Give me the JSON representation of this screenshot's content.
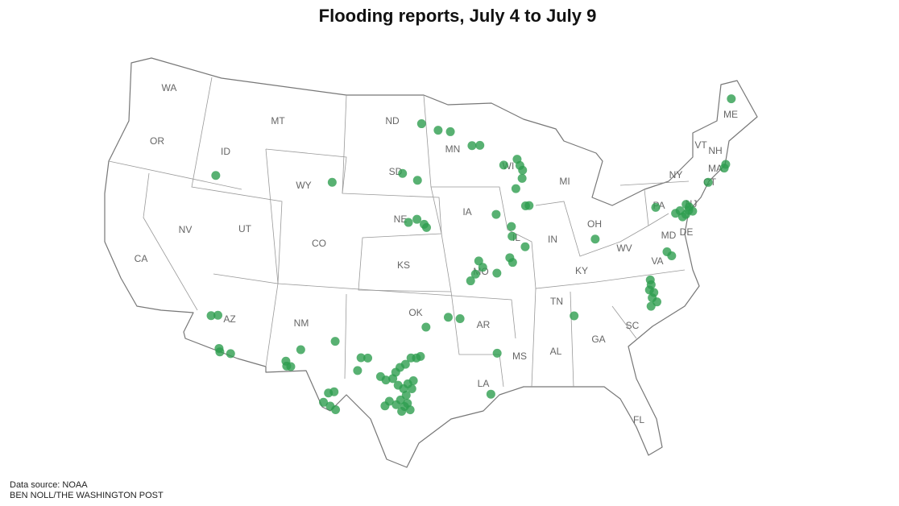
{
  "chart_data": {
    "type": "map",
    "title": "Flooding reports, July 4 to July 9",
    "source": "Data source: NOAA",
    "credit": "BEN NOLL/THE WASHINGTON POST",
    "color": "#2e9e4f",
    "states": [
      "WA",
      "OR",
      "CA",
      "ID",
      "NV",
      "MT",
      "WY",
      "UT",
      "AZ",
      "CO",
      "NM",
      "ND",
      "SD",
      "NE",
      "KS",
      "OK",
      "MN",
      "IA",
      "MO",
      "AR",
      "LA",
      "WI",
      "IL",
      "MI",
      "IN",
      "KY",
      "TN",
      "MS",
      "AL",
      "OH",
      "GA",
      "FL",
      "SC",
      "VA",
      "WV",
      "PA",
      "NY",
      "VT",
      "NH",
      "ME",
      "MA",
      "CT",
      "NJ",
      "MD",
      "DE"
    ],
    "points": {
      "lon": [
        -69.0,
        -97.0,
        -95.5,
        -94.4,
        -92.5,
        -91.8,
        -89.8,
        -88.6,
        -88.4,
        -88.2,
        -88.3,
        -88.9,
        -98.6,
        -97.3,
        -104.6,
        -114.5,
        -98.0,
        -97.3,
        -96.7,
        -96.5,
        -90.7,
        -88.2,
        -87.9,
        -89.5,
        -89.5,
        -88.5,
        -89.8,
        -89.6,
        -92.3,
        -92.0,
        -92.6,
        -93.0,
        -90.9,
        -82.8,
        -77.5,
        -75.0,
        -74.8,
        -74.9,
        -75.2,
        -75.5,
        -74.6,
        -75.6,
        -76.0,
        -72.8,
        -71.2,
        -71.0,
        -77.3,
        -77.0,
        -79.0,
        -79.0,
        -79.2,
        -78.9,
        -79.1,
        -78.8,
        -79.3,
        -85.2,
        -94.8,
        -93.9,
        -96.5,
        -91.2,
        -91.8,
        -112.8,
        -112.3,
        -111.8,
        -111.7,
        -110.9,
        -106.8,
        -106.7,
        -106.4,
        -105.8,
        -103.3,
        -103.5,
        -103.1,
        -103.8,
        -103.3,
        -102.9,
        -101.3,
        -100.8,
        -101.5,
        -99.8,
        -99.4,
        -98.9,
        -98.7,
        -98.4,
        -98.0,
        -97.6,
        -97.2,
        -96.9,
        -98.5,
        -98.1,
        -97.8,
        -97.4,
        -97.9,
        -98.3,
        -98.6,
        -98.0,
        -97.8,
        -99.1,
        -99.4,
        -97.5,
        -98.2,
        -97.6
      ],
      "lat": [
        46.2,
        47.3,
        46.9,
        46.8,
        45.9,
        45.9,
        44.6,
        44.9,
        44.5,
        44.2,
        43.7,
        43.1,
        44.2,
        43.8,
        43.4,
        42.8,
        41.2,
        41.4,
        41.1,
        40.9,
        41.6,
        42.0,
        42.0,
        40.8,
        40.2,
        39.5,
        38.9,
        38.6,
        38.8,
        38.4,
        38.0,
        37.6,
        38.0,
        39.5,
        40.8,
        40.6,
        40.4,
        40.2,
        40.0,
        39.9,
        40.1,
        40.3,
        40.2,
        41.6,
        42.2,
        42.4,
        38.0,
        37.7,
        36.5,
        36.2,
        35.9,
        35.7,
        35.4,
        35.1,
        34.9,
        35.0,
        35.4,
        35.3,
        34.8,
        33.1,
        30.6,
        34.3,
        34.4,
        32.4,
        32.2,
        32.2,
        32.2,
        31.9,
        31.9,
        33.0,
        33.7,
        30.5,
        30.6,
        29.9,
        29.7,
        29.5,
        32.8,
        32.8,
        32.0,
        31.7,
        31.5,
        31.6,
        32.0,
        32.3,
        32.5,
        32.9,
        32.9,
        33.0,
        31.2,
        31.0,
        31.3,
        31.5,
        30.6,
        30.3,
        30.0,
        29.9,
        30.1,
        30.2,
        29.9,
        31.0,
        29.6,
        29.7
      ]
    }
  }
}
